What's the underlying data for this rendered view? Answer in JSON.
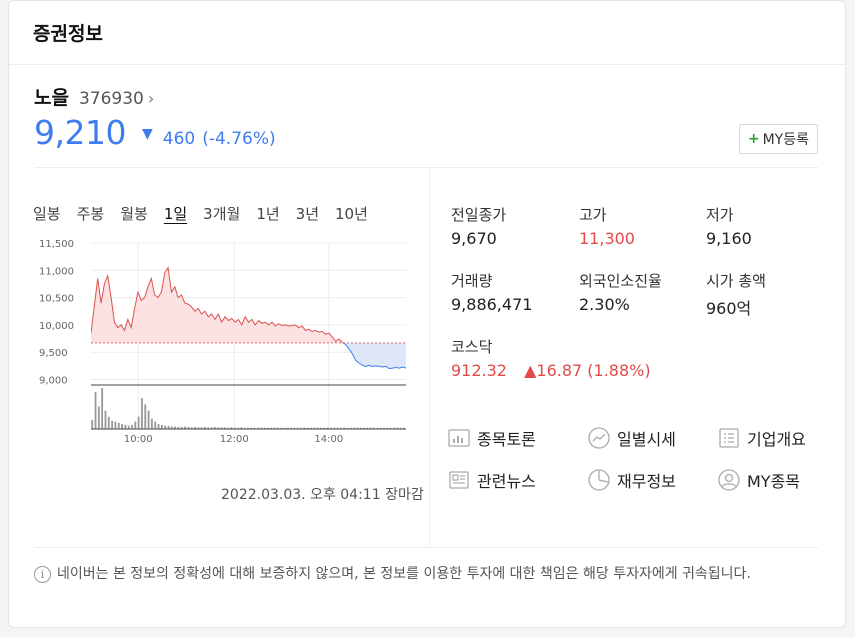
{
  "header": {
    "title": "증권정보"
  },
  "stock": {
    "name": "노을",
    "code": "376930",
    "price": "9,210",
    "change": "460",
    "change_pct": "(-4.76%)",
    "direction": "down",
    "my_button_plus": "+",
    "my_button_label": "MY등록"
  },
  "colors": {
    "down": "#3f7cf0",
    "up": "#e24a4a",
    "accent_green": "#2ca02c"
  },
  "tabs": [
    "일봉",
    "주봉",
    "월봉",
    "1일",
    "3개월",
    "1년",
    "3년",
    "10년"
  ],
  "active_tab": "1일",
  "chart_data": {
    "type": "area",
    "ylim": [
      8900,
      11500
    ],
    "yticks": [
      "11,500",
      "11,000",
      "10,500",
      "10,000",
      "9,500",
      "9,000"
    ],
    "xticks": [
      "10:00",
      "12:00",
      "14:00"
    ],
    "baseline": 9670,
    "prices": [
      9850,
      10350,
      10850,
      10400,
      10750,
      10900,
      10500,
      10050,
      9950,
      10000,
      9900,
      10100,
      9950,
      10300,
      10600,
      10450,
      10500,
      10700,
      10850,
      10550,
      10500,
      10600,
      10950,
      11050,
      10600,
      10700,
      10500,
      10550,
      10400,
      10380,
      10330,
      10250,
      10300,
      10200,
      10250,
      10150,
      10200,
      10100,
      10200,
      10050,
      10150,
      10080,
      10120,
      10050,
      10100,
      10000,
      10150,
      10050,
      10100,
      10000,
      10080,
      10030,
      10050,
      10000,
      10050,
      9980,
      10020,
      9990,
      10000,
      9980,
      9990,
      10000,
      9950,
      9980,
      9900,
      9920,
      9880,
      9900,
      9870,
      9880,
      9830,
      9850,
      9780,
      9700,
      9740,
      9680,
      9640,
      9560,
      9470,
      9350,
      9300,
      9260,
      9240,
      9260,
      9240,
      9250,
      9240,
      9230,
      9240,
      9200,
      9210,
      9220,
      9210,
      9230,
      9210
    ],
    "volume": [
      22,
      90,
      55,
      100,
      45,
      30,
      20,
      18,
      15,
      12,
      10,
      8,
      10,
      18,
      30,
      75,
      60,
      45,
      25,
      18,
      12,
      10,
      8,
      8,
      6,
      6,
      5,
      5,
      6,
      5,
      4,
      5,
      4,
      4,
      5,
      4,
      4,
      5,
      4,
      4,
      4,
      3,
      4,
      3,
      3,
      4,
      3,
      3,
      3,
      3,
      3,
      3,
      3,
      3,
      3,
      3,
      3,
      3,
      3,
      3,
      3,
      3,
      3,
      3,
      3,
      3,
      3,
      3,
      3,
      3,
      3,
      3,
      3,
      3,
      3,
      3,
      3,
      3,
      3,
      3,
      3,
      3,
      3,
      3,
      3,
      3,
      3,
      3,
      3,
      3,
      3,
      3,
      3,
      3,
      3
    ]
  },
  "timestamp": "2022.03.03. 오후 04:11 장마감",
  "stats": {
    "prev_close": {
      "label": "전일종가",
      "value": "9,670"
    },
    "high": {
      "label": "고가",
      "value": "11,300"
    },
    "low": {
      "label": "저가",
      "value": "9,160"
    },
    "volume": {
      "label": "거래량",
      "value": "9,886,471"
    },
    "foreign_ratio": {
      "label": "외국인소진율",
      "value": "2.30%"
    },
    "market_cap": {
      "label": "시가 총액",
      "value": "960억"
    },
    "kosdaq": {
      "label": "코스닥",
      "value": "912.32",
      "arrow": "▲",
      "change": "16.87",
      "pct": "(1.88%)"
    }
  },
  "links": {
    "discussion": {
      "label": "종목토론",
      "icon": "chart-board-icon"
    },
    "daily": {
      "label": "일별시세",
      "icon": "trend-circle-icon"
    },
    "company": {
      "label": "기업개요",
      "icon": "list-doc-icon"
    },
    "news": {
      "label": "관련뉴스",
      "icon": "newspaper-icon"
    },
    "finance": {
      "label": "재무정보",
      "icon": "pie-chart-icon"
    },
    "my_stock": {
      "label": "MY종목",
      "icon": "user-icon"
    }
  },
  "notice": {
    "icon": "i",
    "text": "네이버는 본 정보의 정확성에 대해 보증하지 않으며, 본 정보를 이용한 투자에 대한 책임은 해당 투자자에게 귀속됩니다."
  }
}
